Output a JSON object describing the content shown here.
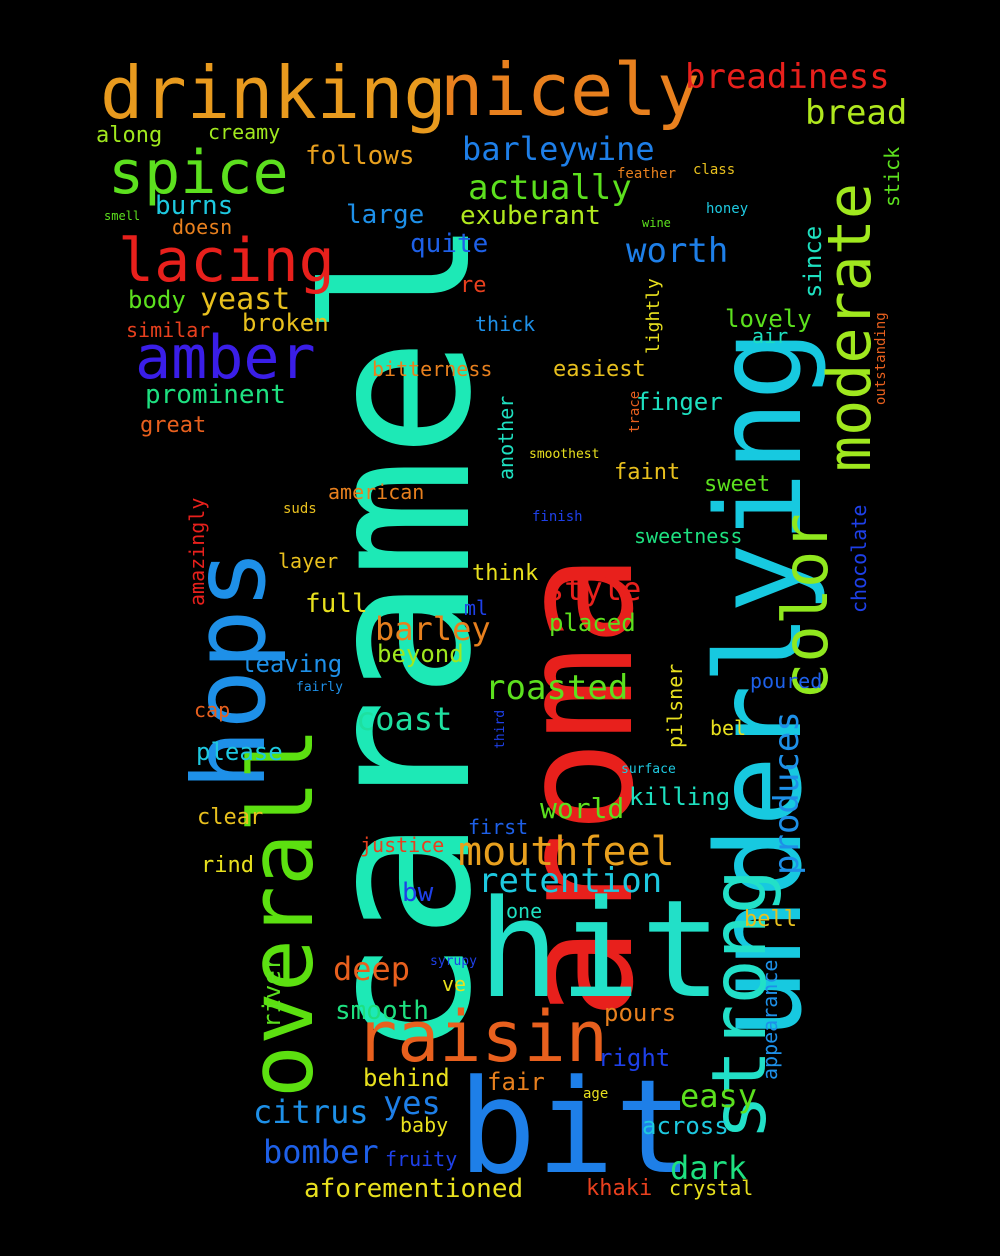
{
  "background": "#000000",
  "words": [
    {
      "text": "caramel",
      "color": "#1de9b6",
      "vertical": true
    },
    {
      "text": "aroma",
      "color": "#e8201c",
      "vertical": true
    },
    {
      "text": "underlying",
      "color": "#17c9e0",
      "vertical": true
    },
    {
      "text": "hit",
      "color": "#22e0c8",
      "vertical": false
    },
    {
      "text": "bit",
      "color": "#1e7fe8",
      "vertical": false
    },
    {
      "text": "hops",
      "color": "#1e90e8",
      "vertical": true
    },
    {
      "text": "overall",
      "color": "#5ce010",
      "vertical": true
    },
    {
      "text": "drinking",
      "color": "#e89a1e",
      "vertical": false
    },
    {
      "text": "nicely",
      "color": "#e8801e",
      "vertical": false
    },
    {
      "text": "strong",
      "color": "#22e0c8",
      "vertical": true
    },
    {
      "text": "raisin",
      "color": "#e8601e",
      "vertical": false
    },
    {
      "text": "moderate",
      "color": "#a0e81e",
      "vertical": true
    },
    {
      "text": "spice",
      "color": "#5ce01e",
      "vertical": false
    },
    {
      "text": "amber",
      "color": "#3a1ee8",
      "vertical": false
    },
    {
      "text": "lacing",
      "color": "#e8201c",
      "vertical": false
    },
    {
      "text": "color",
      "color": "#90e81e",
      "vertical": true
    },
    {
      "text": "mouthfeel",
      "color": "#e8a01e",
      "vertical": false
    },
    {
      "text": "breadiness",
      "color": "#e8201c",
      "vertical": false
    },
    {
      "text": "bread",
      "color": "#b0e81e",
      "vertical": false
    },
    {
      "text": "barleywine",
      "color": "#1e7fe8",
      "vertical": false
    },
    {
      "text": "actually",
      "color": "#5ce01e",
      "vertical": false
    },
    {
      "text": "worth",
      "color": "#1e7fe8",
      "vertical": false
    },
    {
      "text": "retention",
      "color": "#1ec9e0",
      "vertical": false
    },
    {
      "text": "produces",
      "color": "#1e90e8",
      "vertical": true
    },
    {
      "text": "roasted",
      "color": "#5ce01e",
      "vertical": false
    },
    {
      "text": "barley",
      "color": "#e8801e",
      "vertical": false
    },
    {
      "text": "style",
      "color": "#e8201c",
      "vertical": false
    },
    {
      "text": "coast",
      "color": "#1ee0a0",
      "vertical": false
    },
    {
      "text": "citrus",
      "color": "#1e90e8",
      "vertical": false
    },
    {
      "text": "bomber",
      "color": "#1e60e8",
      "vertical": false
    },
    {
      "text": "easy",
      "color": "#5ce01e",
      "vertical": false
    },
    {
      "text": "dark",
      "color": "#1ee080",
      "vertical": false
    },
    {
      "text": "deep",
      "color": "#e8601e",
      "vertical": false
    },
    {
      "text": "yes",
      "color": "#1e7fe8",
      "vertical": false
    },
    {
      "text": "world",
      "color": "#5ce01e",
      "vertical": false
    },
    {
      "text": "yeast",
      "color": "#e8c01e",
      "vertical": false
    },
    {
      "text": "follows",
      "color": "#e8a01e",
      "vertical": false
    },
    {
      "text": "exuberant",
      "color": "#b0e81e",
      "vertical": false
    },
    {
      "text": "prominent",
      "color": "#1ee080",
      "vertical": false
    },
    {
      "text": "large",
      "color": "#1e90e8",
      "vertical": false
    },
    {
      "text": "aforementioned",
      "color": "#e8e01e",
      "vertical": false
    },
    {
      "text": "smooth",
      "color": "#1ee080",
      "vertical": false
    },
    {
      "text": "full",
      "color": "#e8e01e",
      "vertical": false
    },
    {
      "text": "burns",
      "color": "#1ec9e0",
      "vertical": false
    },
    {
      "text": "quite",
      "color": "#1e60e8",
      "vertical": false
    },
    {
      "text": "broken",
      "color": "#e8c01e",
      "vertical": false
    },
    {
      "text": "body",
      "color": "#5ce01e",
      "vertical": false
    },
    {
      "text": "finger",
      "color": "#1ee0c0",
      "vertical": false
    },
    {
      "text": "lovely",
      "color": "#5ce01e",
      "vertical": false
    },
    {
      "text": "since",
      "color": "#1ee0c0",
      "vertical": true
    },
    {
      "text": "pours",
      "color": "#e8801e",
      "vertical": false
    },
    {
      "text": "right",
      "color": "#1e40e8",
      "vertical": false
    },
    {
      "text": "across",
      "color": "#1ec9e0",
      "vertical": false
    },
    {
      "text": "fair",
      "color": "#e8801e",
      "vertical": false
    },
    {
      "text": "behind",
      "color": "#e8e01e",
      "vertical": false
    },
    {
      "text": "placed",
      "color": "#5ce01e",
      "vertical": false
    },
    {
      "text": "beyond",
      "color": "#a0e81e",
      "vertical": false
    },
    {
      "text": "leaving",
      "color": "#1e90e8",
      "vertical": false
    },
    {
      "text": "please",
      "color": "#1ec9e0",
      "vertical": false
    },
    {
      "text": "killing",
      "color": "#1ee0c0",
      "vertical": false
    },
    {
      "text": "river",
      "color": "#5ce01e",
      "vertical": true
    },
    {
      "text": "easiest",
      "color": "#e8c01e",
      "vertical": false
    },
    {
      "text": "bitterness",
      "color": "#e8801e",
      "vertical": false
    },
    {
      "text": "american",
      "color": "#e8801e",
      "vertical": false
    },
    {
      "text": "faint",
      "color": "#e8c01e",
      "vertical": false
    },
    {
      "text": "sweet",
      "color": "#5ce01e",
      "vertical": false
    },
    {
      "text": "sweetness",
      "color": "#1ee080",
      "vertical": false
    },
    {
      "text": "think",
      "color": "#e8e01e",
      "vertical": false
    },
    {
      "text": "another",
      "color": "#1ee0c0",
      "vertical": true
    },
    {
      "text": "justice",
      "color": "#e8401e",
      "vertical": false
    },
    {
      "text": "first",
      "color": "#1e60e8",
      "vertical": false
    },
    {
      "text": "bw",
      "color": "#1e40e8",
      "vertical": false
    },
    {
      "text": "one",
      "color": "#1ee0c0",
      "vertical": false
    },
    {
      "text": "ve",
      "color": "#e8e01e",
      "vertical": false
    },
    {
      "text": "bel",
      "color": "#e8e01e",
      "vertical": false
    },
    {
      "text": "bell",
      "color": "#e8c01e",
      "vertical": false
    },
    {
      "text": "appearance",
      "color": "#1e90e8",
      "vertical": true
    },
    {
      "text": "poured",
      "color": "#1e60e8",
      "vertical": false
    },
    {
      "text": "pilsner",
      "color": "#e8e01e",
      "vertical": true
    },
    {
      "text": "chocolate",
      "color": "#1e40e8",
      "vertical": true
    },
    {
      "text": "thick",
      "color": "#1e90e8",
      "vertical": false
    },
    {
      "text": "re",
      "color": "#e8401e",
      "vertical": false
    },
    {
      "text": "air",
      "color": "#1ee0c0",
      "vertical": false
    },
    {
      "text": "lightly",
      "color": "#e8e01e",
      "vertical": true
    },
    {
      "text": "stick",
      "color": "#5ce01e",
      "vertical": true
    },
    {
      "text": "along",
      "color": "#a0e81e",
      "vertical": false
    },
    {
      "text": "creamy",
      "color": "#a0e81e",
      "vertical": false
    },
    {
      "text": "doesn",
      "color": "#e8801e",
      "vertical": false
    },
    {
      "text": "similar",
      "color": "#e8401e",
      "vertical": false
    },
    {
      "text": "great",
      "color": "#e8601e",
      "vertical": false
    },
    {
      "text": "amazingly",
      "color": "#e8201c",
      "vertical": true
    },
    {
      "text": "layer",
      "color": "#e8c01e",
      "vertical": false
    },
    {
      "text": "cap",
      "color": "#e8601e",
      "vertical": false
    },
    {
      "text": "clear",
      "color": "#e8c01e",
      "vertical": false
    },
    {
      "text": "rind",
      "color": "#e8e01e",
      "vertical": false
    },
    {
      "text": "ml",
      "color": "#1e40e8",
      "vertical": false
    },
    {
      "text": "baby",
      "color": "#e8e01e",
      "vertical": false
    },
    {
      "text": "fruity",
      "color": "#1e40e8",
      "vertical": false
    },
    {
      "text": "khaki",
      "color": "#e8401e",
      "vertical": false
    },
    {
      "text": "crystal",
      "color": "#e8e01e",
      "vertical": false
    },
    {
      "text": "smell",
      "color": "#5ce01e",
      "vertical": false
    },
    {
      "text": "feather",
      "color": "#e8801e",
      "vertical": false
    },
    {
      "text": "class",
      "color": "#e8c01e",
      "vertical": false
    },
    {
      "text": "wine",
      "color": "#5ce01e",
      "vertical": false
    },
    {
      "text": "honey",
      "color": "#1ec9e0",
      "vertical": false
    },
    {
      "text": "outstanding",
      "color": "#e8601e",
      "vertical": true
    },
    {
      "text": "trace",
      "color": "#e8601e",
      "vertical": true
    },
    {
      "text": "smoothest",
      "color": "#e8e01e",
      "vertical": false
    },
    {
      "text": "finish",
      "color": "#1e40e8",
      "vertical": false
    },
    {
      "text": "suds",
      "color": "#e8c01e",
      "vertical": false
    },
    {
      "text": "fairly",
      "color": "#1e90e8",
      "vertical": false
    },
    {
      "text": "third",
      "color": "#1e40e8",
      "vertical": true
    },
    {
      "text": "surface",
      "color": "#1ec9e0",
      "vertical": false
    },
    {
      "text": "syrupy",
      "color": "#1e40e8",
      "vertical": false
    },
    {
      "text": "age",
      "color": "#e8e01e",
      "vertical": false
    }
  ]
}
